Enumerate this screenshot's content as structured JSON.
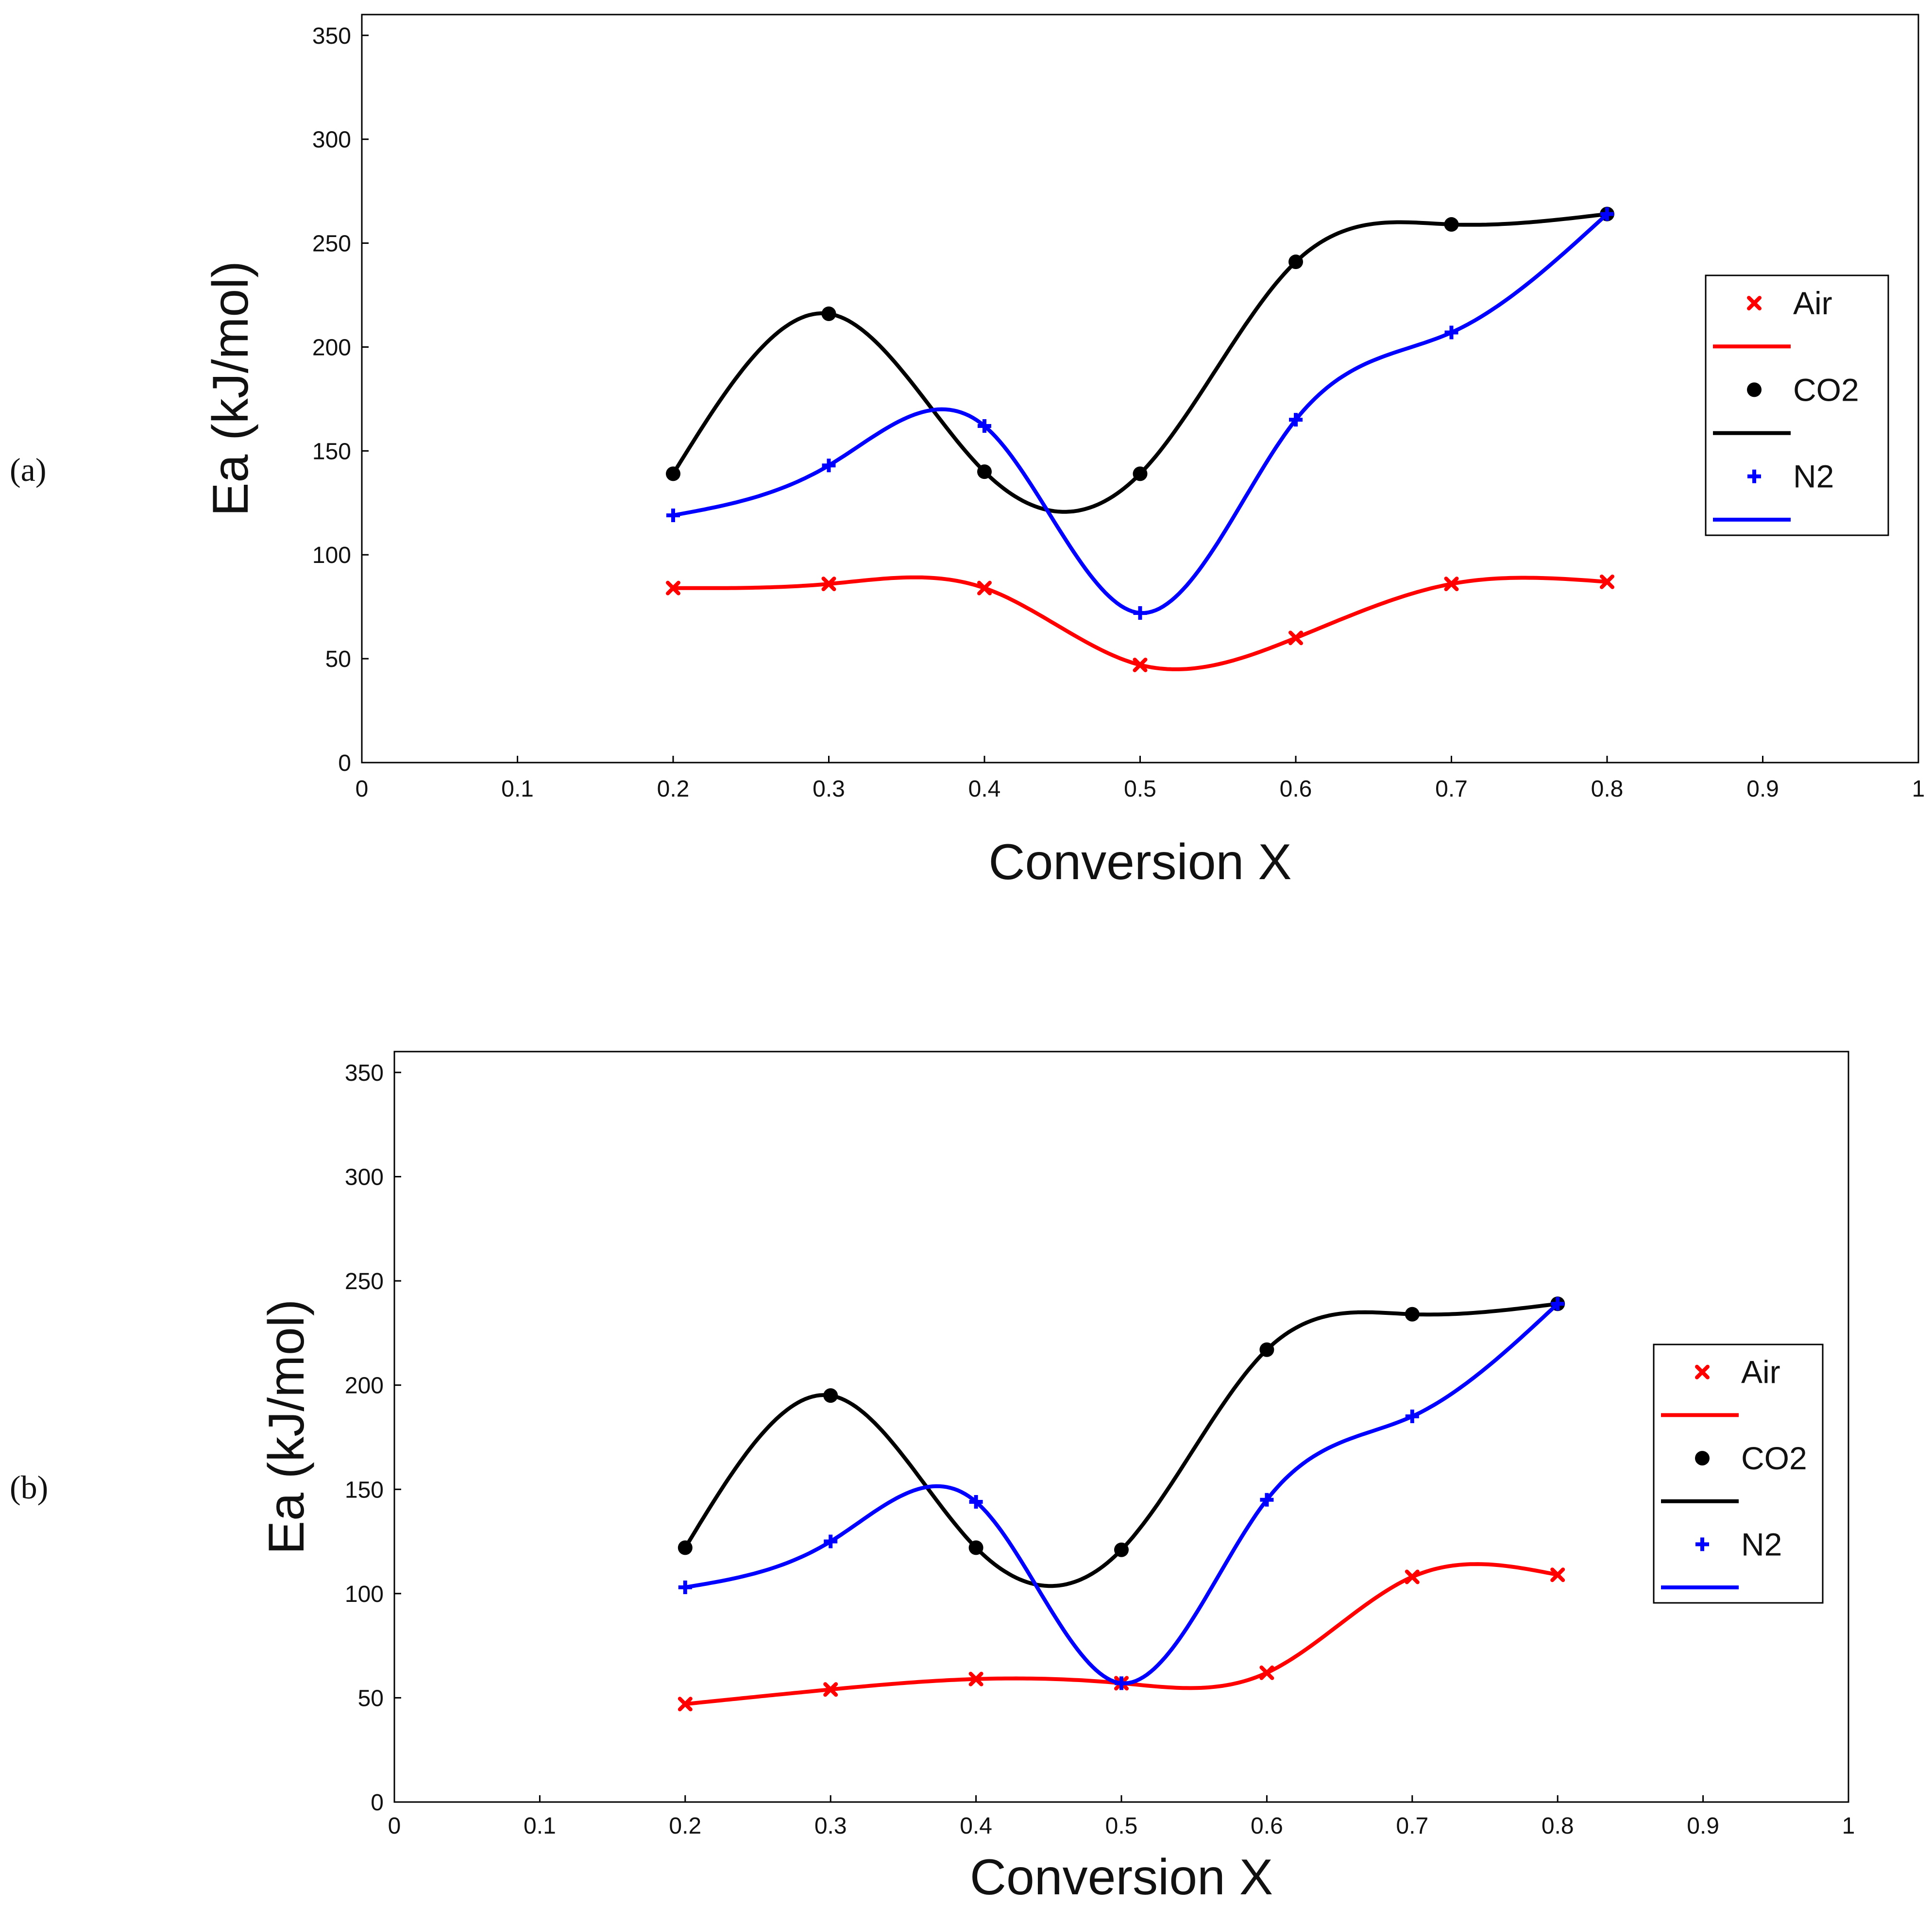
{
  "chart_data": [
    {
      "type": "line",
      "panel_label": "(a)",
      "xlabel": "Conversion X",
      "ylabel": "Ea (kJ/mol)",
      "xlim": [
        0,
        1
      ],
      "ylim": [
        0,
        360
      ],
      "xticks": [
        "0",
        "0.1",
        "0.2",
        "0.3",
        "0.4",
        "0.5",
        "0.6",
        "0.7",
        "0.8",
        "0.9",
        "1"
      ],
      "yticks": [
        "0",
        "50",
        "100",
        "150",
        "200",
        "250",
        "300",
        "350"
      ],
      "legend_position": "right",
      "x": [
        0.2,
        0.3,
        0.4,
        0.5,
        0.6,
        0.7,
        0.8
      ],
      "series": [
        {
          "name": "Air",
          "color": "#ff0000",
          "marker": "x",
          "values": [
            84,
            86,
            84,
            47,
            60,
            86,
            87
          ]
        },
        {
          "name": "CO2",
          "color": "#000000",
          "marker": "circle",
          "values": [
            139,
            216,
            140,
            139,
            241,
            259,
            264
          ]
        },
        {
          "name": "N2",
          "color": "#0000ff",
          "marker": "plus",
          "values": [
            119,
            143,
            162,
            72,
            165,
            207,
            264
          ]
        }
      ]
    },
    {
      "type": "line",
      "panel_label": "(b)",
      "xlabel": "Conversion X",
      "ylabel": "Ea (kJ/mol)",
      "xlim": [
        0,
        1
      ],
      "ylim": [
        0,
        360
      ],
      "xticks": [
        "0",
        "0.1",
        "0.2",
        "0.3",
        "0.4",
        "0.5",
        "0.6",
        "0.7",
        "0.8",
        "0.9",
        "1"
      ],
      "yticks": [
        "0",
        "50",
        "100",
        "150",
        "200",
        "250",
        "300",
        "350"
      ],
      "legend_position": "right",
      "x": [
        0.2,
        0.3,
        0.4,
        0.5,
        0.6,
        0.7,
        0.8
      ],
      "series": [
        {
          "name": "Air",
          "color": "#ff0000",
          "marker": "x",
          "values": [
            47,
            54,
            59,
            57,
            62,
            108,
            109
          ]
        },
        {
          "name": "CO2",
          "color": "#000000",
          "marker": "circle",
          "values": [
            122,
            195,
            122,
            121,
            217,
            234,
            239
          ]
        },
        {
          "name": "N2",
          "color": "#0000ff",
          "marker": "plus",
          "values": [
            103,
            125,
            144,
            57,
            145,
            185,
            239
          ]
        }
      ]
    }
  ]
}
